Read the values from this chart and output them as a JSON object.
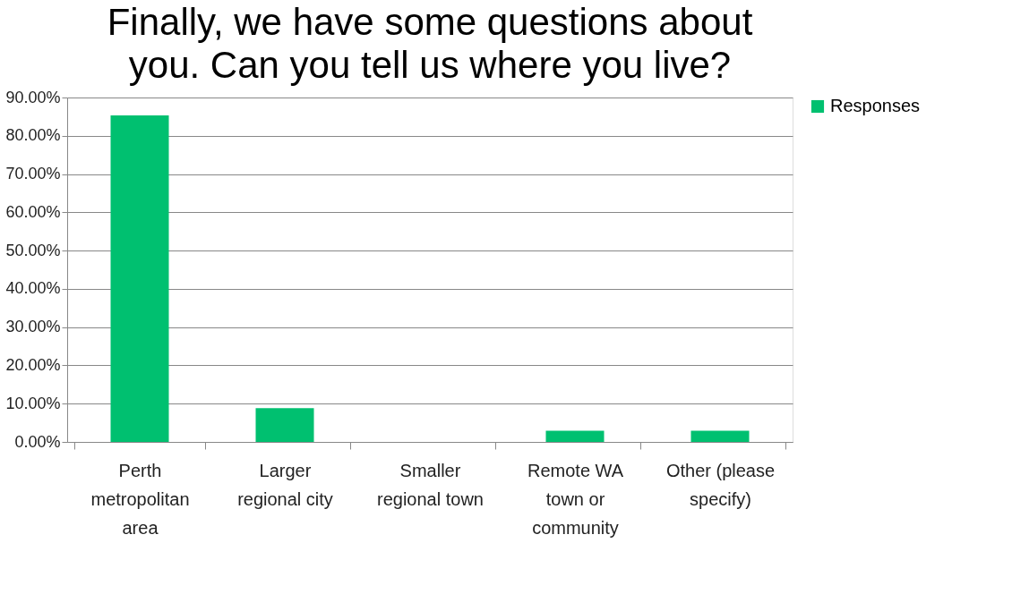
{
  "chart_data": {
    "type": "bar",
    "title": "Finally, we have some questions about you. Can you tell us where you live?",
    "categories": [
      "Perth metropolitan area",
      "Larger regional city",
      "Smaller regional town",
      "Remote WA town or community",
      "Other (please specify)"
    ],
    "series": [
      {
        "name": "Responses",
        "color": "#00c070",
        "values": [
          85.3,
          8.8,
          0,
          2.9,
          2.9
        ]
      }
    ],
    "ylim": [
      0,
      90
    ],
    "yticks": [
      {
        "value": 0,
        "label": "0.00%"
      },
      {
        "value": 10,
        "label": "10.00%"
      },
      {
        "value": 20,
        "label": "20.00%"
      },
      {
        "value": 30,
        "label": "30.00%"
      },
      {
        "value": 40,
        "label": "40.00%"
      },
      {
        "value": 50,
        "label": "50.00%"
      },
      {
        "value": 60,
        "label": "60.00%"
      },
      {
        "value": 70,
        "label": "70.00%"
      },
      {
        "value": 80,
        "label": "80.00%"
      },
      {
        "value": 90,
        "label": "90.00%"
      }
    ],
    "grid": "y",
    "legend": "right"
  }
}
